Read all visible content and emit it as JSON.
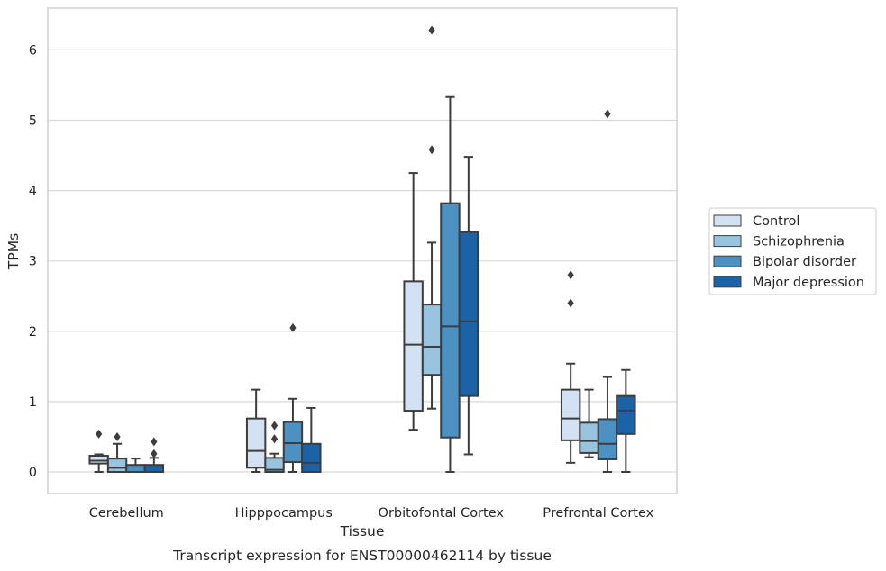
{
  "chart_data": {
    "type": "box",
    "caption": "Transcript expression for ENST00000462114 by tissue",
    "xlabel": "Tissue",
    "ylabel": "TPMs",
    "ylim": [
      -0.3,
      6.6
    ],
    "yticks": [
      0,
      1,
      2,
      3,
      4,
      5,
      6
    ],
    "grid": "horizontal",
    "legend_position": "right",
    "categories": [
      "Cerebellum",
      "Hipppocampus",
      "Orbitofontal Cortex",
      "Prefrontal Cortex"
    ],
    "series": [
      {
        "name": "Control",
        "color": "#d3e2f2",
        "boxes": [
          {
            "whislo": 0.0,
            "q1": 0.12,
            "med": 0.16,
            "q3": 0.23,
            "whishi": 0.25,
            "fliers": [
              0.54
            ]
          },
          {
            "whislo": 0.0,
            "q1": 0.06,
            "med": 0.3,
            "q3": 0.76,
            "whishi": 1.17,
            "fliers": []
          },
          {
            "whislo": 0.6,
            "q1": 0.87,
            "med": 1.81,
            "q3": 2.71,
            "whishi": 4.25,
            "fliers": []
          },
          {
            "whislo": 0.13,
            "q1": 0.45,
            "med": 0.76,
            "q3": 1.17,
            "whishi": 1.54,
            "fliers": [
              2.4,
              2.8
            ]
          }
        ]
      },
      {
        "name": "Schizophrenia",
        "color": "#99c4df",
        "boxes": [
          {
            "whislo": 0.0,
            "q1": 0.0,
            "med": 0.06,
            "q3": 0.19,
            "whishi": 0.4,
            "fliers": [
              0.5
            ]
          },
          {
            "whislo": 0.0,
            "q1": 0.0,
            "med": 0.03,
            "q3": 0.2,
            "whishi": 0.26,
            "fliers": [
              0.47,
              0.66
            ]
          },
          {
            "whislo": 0.9,
            "q1": 1.38,
            "med": 1.78,
            "q3": 2.38,
            "whishi": 3.26,
            "fliers": [
              4.58,
              6.28
            ]
          },
          {
            "whislo": 0.21,
            "q1": 0.27,
            "med": 0.44,
            "q3": 0.7,
            "whishi": 1.17,
            "fliers": []
          }
        ]
      },
      {
        "name": "Bipolar disorder",
        "color": "#4d90c2",
        "boxes": [
          {
            "whislo": 0.0,
            "q1": 0.0,
            "med": 0.0,
            "q3": 0.1,
            "whishi": 0.19,
            "fliers": []
          },
          {
            "whislo": 0.0,
            "q1": 0.14,
            "med": 0.41,
            "q3": 0.71,
            "whishi": 1.04,
            "fliers": [
              2.05
            ]
          },
          {
            "whislo": 0.0,
            "q1": 0.49,
            "med": 2.07,
            "q3": 3.82,
            "whishi": 5.33,
            "fliers": []
          },
          {
            "whislo": 0.0,
            "q1": 0.18,
            "med": 0.4,
            "q3": 0.75,
            "whishi": 1.35,
            "fliers": [
              5.09
            ]
          }
        ]
      },
      {
        "name": "Major depression",
        "color": "#1b62a6",
        "boxes": [
          {
            "whislo": 0.0,
            "q1": 0.0,
            "med": 0.0,
            "q3": 0.1,
            "whishi": 0.2,
            "fliers": [
              0.26,
              0.43
            ]
          },
          {
            "whislo": 0.0,
            "q1": 0.0,
            "med": 0.13,
            "q3": 0.4,
            "whishi": 0.91,
            "fliers": []
          },
          {
            "whislo": 0.25,
            "q1": 1.08,
            "med": 2.14,
            "q3": 3.41,
            "whishi": 4.48,
            "fliers": []
          },
          {
            "whislo": 0.0,
            "q1": 0.54,
            "med": 0.87,
            "q3": 1.08,
            "whishi": 1.45,
            "fliers": []
          }
        ]
      }
    ]
  }
}
